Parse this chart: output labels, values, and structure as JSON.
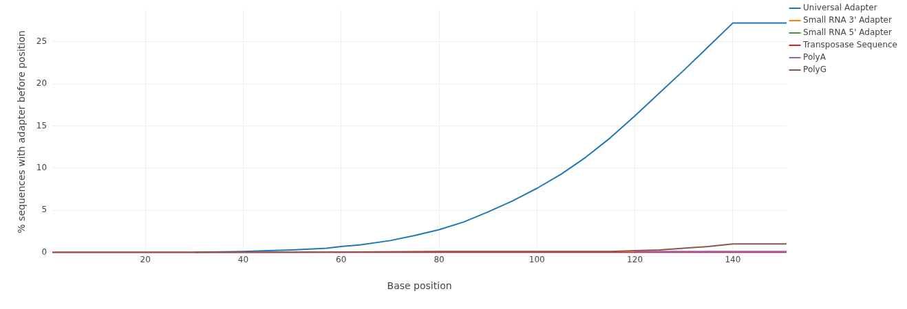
{
  "chart_data": {
    "type": "line",
    "xlabel": "Base position",
    "ylabel": "% sequences with adapter before position",
    "xlim": [
      1,
      151
    ],
    "ylim": [
      -0.1,
      28.7
    ],
    "xticks": [
      20,
      40,
      60,
      80,
      100,
      120,
      140
    ],
    "yticks": [
      0,
      5,
      10,
      15,
      20,
      25
    ],
    "grid": true,
    "legend": "top right",
    "marker": "none",
    "line_style": "solid",
    "series": [
      {
        "name": "Universal Adapter",
        "color": "#1f77b4",
        "x": [
          30,
          40,
          45,
          50,
          57,
          60,
          64,
          70,
          75,
          80,
          85,
          90,
          95,
          100,
          105,
          110,
          115,
          120,
          125,
          130,
          135,
          140,
          151
        ],
        "values": [
          0,
          0.1,
          0.2,
          0.3,
          0.5,
          0.7,
          0.9,
          1.4,
          2,
          2.7,
          3.6,
          4.8,
          6.1,
          7.6,
          9.3,
          11.3,
          13.6,
          16.2,
          18.9,
          21.6,
          24.4,
          27.2,
          27.2
        ]
      },
      {
        "name": "Small RNA 3' Adapter",
        "color": "#ff7f0e",
        "values": [
          null,
          null
        ]
      },
      {
        "name": "Small RNA 5' Adapter",
        "color": "#2ca02c",
        "values": [
          null,
          null
        ]
      },
      {
        "name": "Transposase Sequence",
        "color": "#d62728",
        "x": [
          1,
          151
        ],
        "values": [
          0,
          0
        ]
      },
      {
        "name": "PolyA",
        "color": "#9467bd",
        "x": [
          120,
          140,
          151
        ],
        "values": [
          0.1,
          0.1,
          0.1
        ]
      },
      {
        "name": "PolyG",
        "color": "#8c564b",
        "x": [
          1,
          40,
          80,
          115,
          120,
          125,
          130,
          135,
          140,
          151
        ],
        "values": [
          0,
          0,
          0.1,
          0.1,
          0.2,
          0.3,
          0.5,
          0.7,
          1,
          1
        ]
      }
    ]
  }
}
